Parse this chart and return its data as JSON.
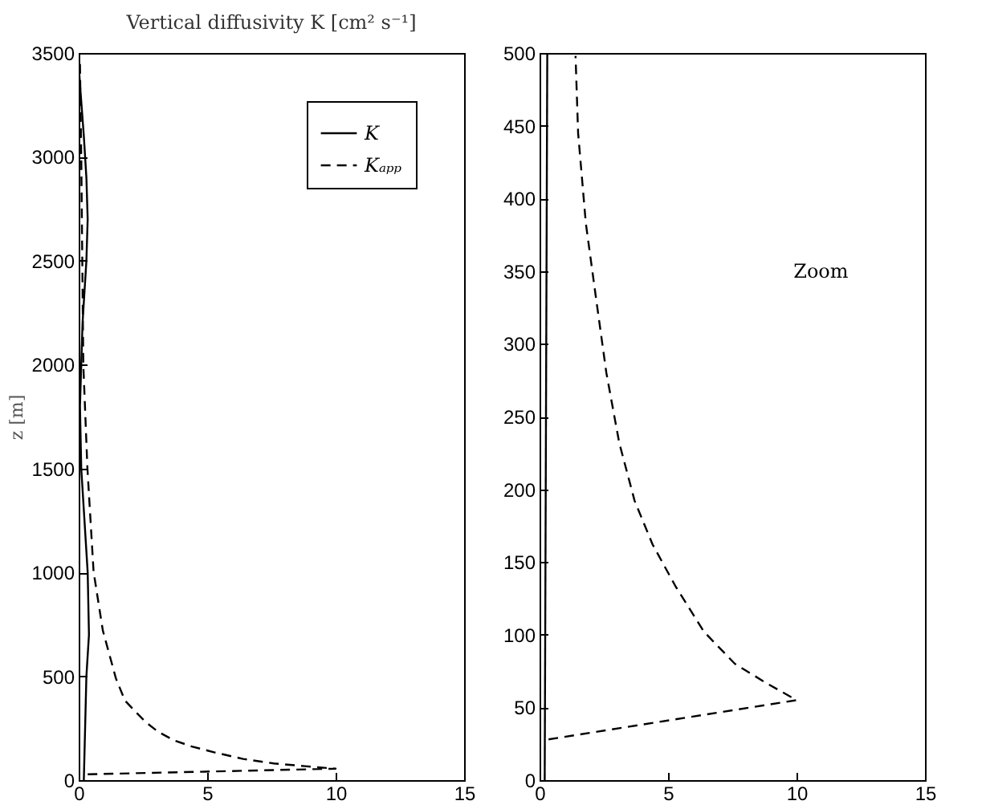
{
  "chart_data": [
    {
      "type": "line",
      "title": "Vertical diffusivity K [cm² s⁻¹]",
      "ylabel": "z [m]",
      "xlim": [
        0,
        15
      ],
      "xticks": [
        0,
        5,
        10,
        15
      ],
      "ylim": [
        0,
        3500
      ],
      "yticks": [
        0,
        500,
        1000,
        1500,
        2000,
        2500,
        3000,
        3500
      ],
      "grid": false,
      "legend": "top right",
      "marker": "none",
      "series": [
        {
          "name": "K",
          "color": "#000000",
          "line_style": "solid",
          "x": [
            0.2,
            0.3,
            0.4,
            0.35,
            0.2,
            0.1,
            0.05,
            0.15,
            0.3,
            0.35,
            0.3,
            0.2,
            0.05,
            0
          ],
          "values": [
            0,
            500,
            700,
            1000,
            1300,
            1500,
            1800,
            2200,
            2500,
            2700,
            2900,
            3100,
            3350,
            3450
          ]
        },
        {
          "name": "Kₐₚₚ",
          "color": "#000000",
          "line_style": "dashed",
          "x": [
            0.35,
            10,
            8.8,
            7.6,
            6.4,
            5.3,
            4.4,
            3.7,
            3.1,
            2.6,
            2.2,
            1.8,
            1.45,
            0.94,
            0.58,
            0.34,
            0.18,
            0.1,
            0.05
          ],
          "values": [
            28,
            55,
            67,
            80,
            102,
            133,
            162,
            192,
            232,
            280,
            331,
            383,
            489,
            720,
            1003,
            1500,
            2000,
            3000,
            3450
          ]
        }
      ]
    },
    {
      "type": "line",
      "annotations": [
        "Zoom"
      ],
      "xlim": [
        0,
        15
      ],
      "xticks": [
        0,
        5,
        10,
        15
      ],
      "ylim": [
        0,
        500
      ],
      "yticks": [
        0,
        50,
        100,
        150,
        200,
        250,
        300,
        350,
        400,
        450,
        500
      ],
      "grid": false,
      "marker": "none",
      "series": [
        {
          "color": "#000000",
          "line_style": "solid",
          "x": [
            0.2,
            0.3
          ],
          "values": [
            0,
            500
          ]
        },
        {
          "color": "#000000",
          "line_style": "dashed",
          "x": [
            0.35,
            10,
            8.8,
            7.6,
            6.4,
            5.3,
            4.4,
            3.7,
            3.1,
            2.6,
            2.2,
            1.8,
            1.5,
            1.4
          ],
          "values": [
            28,
            55,
            67,
            80,
            102,
            133,
            162,
            192,
            232,
            280,
            331,
            383,
            445,
            498
          ]
        }
      ]
    }
  ]
}
